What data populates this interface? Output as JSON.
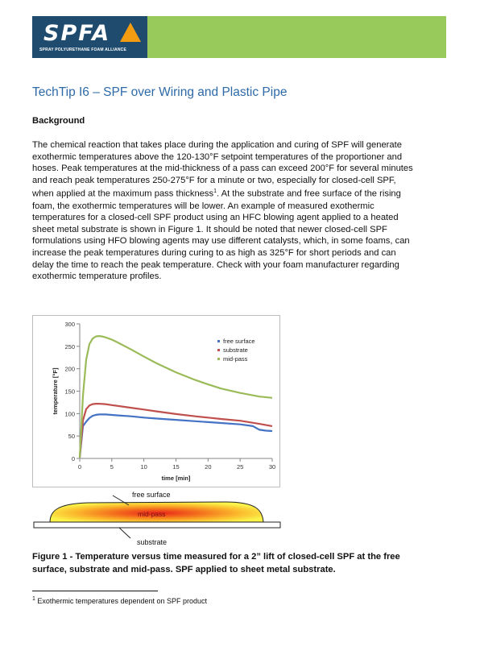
{
  "header": {
    "logo_text": "SPFA",
    "logo_subtitle": "SPRAY POLYURETHANE FOAM ALLIANCE",
    "colors": {
      "logo_bg": "#1e4b6e",
      "bar": "#97c95b",
      "accent": "#f39c12"
    }
  },
  "title": "TechTip I6 – SPF over Wiring and Plastic Pipe",
  "section_heading": "Background",
  "paragraph": [
    "The chemical reaction that takes place during the application and curing of SPF will generate",
    "exothermic temperatures above the 120-130°F setpoint temperatures of the proportioner and",
    "hoses.  Peak temperatures at the mid-thickness of a pass can exceed 200°F for several minutes",
    "and reach peak temperatures 250-275°F for a minute or two, especially for closed-cell SPF,",
    "when applied at the maximum pass thickness",
    "foam, the exothermic temperatures will be lower.  An example of measured exothermic",
    "temperatures for a closed-cell SPF product using an HFC blowing agent applied to a heated",
    "sheet metal substrate is shown in Figure 1.  It should be noted that newer closed-cell SPF",
    "formulations using HFO blowing agents may use different catalysts, which, in some foams, can",
    "increase the peak temperatures during curing to as high as 325°F for short periods and can",
    "delay the time to reach the peak temperature.  Check with your foam manufacturer regarding",
    "exothermic temperature profiles."
  ],
  "footnote_mark": "1",
  "paragraph_line5_tail": ".  At the substrate and free surface of the rising",
  "chart_data": {
    "type": "line",
    "xlabel": "time [min]",
    "ylabel": "temperature [°F]",
    "xlim": [
      0,
      30
    ],
    "ylim": [
      0,
      300
    ],
    "xticks": [
      0,
      5,
      10,
      15,
      20,
      25,
      30
    ],
    "yticks": [
      0,
      50,
      100,
      150,
      200,
      250,
      300
    ],
    "grid": false,
    "legend_position": "top-right",
    "series": [
      {
        "name": "free surface",
        "color": "#4472c4",
        "x": [
          0,
          0.5,
          1,
          1.5,
          2,
          2.5,
          3,
          4,
          5,
          6,
          8,
          10,
          12,
          15,
          18,
          20,
          22,
          25,
          27,
          28,
          29,
          30
        ],
        "y": [
          2,
          72,
          82,
          90,
          95,
          97,
          98,
          98,
          97,
          96,
          94,
          91,
          89,
          86,
          83,
          81,
          79,
          76,
          72,
          64,
          62,
          61
        ]
      },
      {
        "name": "substrate",
        "color": "#c0504d",
        "x": [
          0,
          0.5,
          1,
          1.5,
          2,
          2.5,
          3,
          4,
          5,
          6,
          8,
          10,
          12,
          15,
          18,
          20,
          22,
          25,
          28,
          30
        ],
        "y": [
          2,
          85,
          110,
          118,
          121,
          122,
          122,
          121,
          119,
          117,
          113,
          109,
          105,
          99,
          94,
          91,
          88,
          84,
          77,
          72
        ]
      },
      {
        "name": "mid-pass",
        "color": "#9bbb59",
        "x": [
          0,
          0.5,
          1,
          1.5,
          2,
          2.5,
          3,
          3.5,
          4,
          5,
          6,
          8,
          10,
          12,
          15,
          18,
          20,
          22,
          25,
          28,
          30
        ],
        "y": [
          2,
          140,
          220,
          255,
          267,
          272,
          273,
          272,
          270,
          265,
          258,
          243,
          227,
          212,
          192,
          175,
          165,
          156,
          146,
          138,
          135
        ]
      }
    ]
  },
  "diagram": {
    "free_surface_label": "free surface",
    "mid_pass_label": "mid-pass",
    "substrate_label": "substrate"
  },
  "caption": [
    "Figure 1 - Temperature versus time measured for a 2” lift of closed-cell SPF at the free",
    "surface, substrate and mid-pass.  SPF applied to sheet metal substrate."
  ],
  "footnote": {
    "mark": "1",
    "text": " Exothermic temperatures dependent on SPF product"
  }
}
